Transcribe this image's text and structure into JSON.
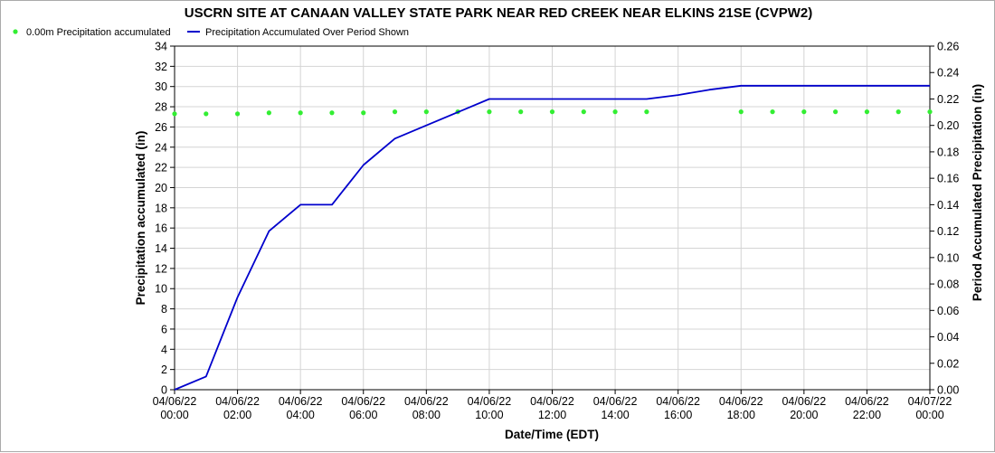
{
  "chart_data": {
    "type": "line",
    "title": "USCRN SITE AT CANAAN VALLEY STATE PARK NEAR RED CREEK NEAR ELKINS 21SE (CVPW2)",
    "xlabel": "Date/Time (EDT)",
    "ylabel_left": "Precipitation accumulated (in)",
    "ylabel_right": "Period Accumulated Precipitation (in)",
    "x_range": [
      "2022-04-06 00:00",
      "2022-04-07 00:00"
    ],
    "ylim_left": [
      0,
      34
    ],
    "ylim_right": [
      0,
      0.26
    ],
    "grid": true,
    "legend_placement": "top-left",
    "x_ticks": [
      {
        "hour": 0,
        "date": "04/06/22",
        "time": "00:00"
      },
      {
        "hour": 2,
        "date": "04/06/22",
        "time": "02:00"
      },
      {
        "hour": 4,
        "date": "04/06/22",
        "time": "04:00"
      },
      {
        "hour": 6,
        "date": "04/06/22",
        "time": "06:00"
      },
      {
        "hour": 8,
        "date": "04/06/22",
        "time": "08:00"
      },
      {
        "hour": 10,
        "date": "04/06/22",
        "time": "10:00"
      },
      {
        "hour": 12,
        "date": "04/06/22",
        "time": "12:00"
      },
      {
        "hour": 14,
        "date": "04/06/22",
        "time": "14:00"
      },
      {
        "hour": 16,
        "date": "04/06/22",
        "time": "16:00"
      },
      {
        "hour": 18,
        "date": "04/06/22",
        "time": "18:00"
      },
      {
        "hour": 20,
        "date": "04/06/22",
        "time": "20:00"
      },
      {
        "hour": 22,
        "date": "04/06/22",
        "time": "22:00"
      },
      {
        "hour": 24,
        "date": "04/07/22",
        "time": "00:00"
      }
    ],
    "y_ticks_left": [
      "0",
      "2",
      "4",
      "6",
      "8",
      "10",
      "12",
      "14",
      "16",
      "18",
      "20",
      "22",
      "24",
      "26",
      "28",
      "30",
      "32",
      "34"
    ],
    "y_ticks_right": [
      "0.00",
      "0.02",
      "0.04",
      "0.06",
      "0.08",
      "0.10",
      "0.12",
      "0.14",
      "0.16",
      "0.18",
      "0.20",
      "0.22",
      "0.24",
      "0.26"
    ],
    "series": [
      {
        "name": "0.00m Precipitation accumulated",
        "axis": "left",
        "style": "points",
        "color": "#33ee33",
        "x_hours": [
          0,
          1,
          2,
          3,
          4,
          5,
          6,
          7,
          8,
          9,
          10,
          11,
          12,
          13,
          14,
          15,
          18,
          19,
          20,
          21,
          22,
          23,
          24
        ],
        "values": [
          27.3,
          27.3,
          27.3,
          27.4,
          27.4,
          27.4,
          27.4,
          27.5,
          27.5,
          27.5,
          27.5,
          27.5,
          27.5,
          27.5,
          27.5,
          27.5,
          27.5,
          27.5,
          27.5,
          27.5,
          27.5,
          27.5,
          27.5
        ]
      },
      {
        "name": "Precipitation Accumulated Over Period Shown",
        "axis": "right",
        "style": "line",
        "color": "#0000cc",
        "x_hours": [
          0,
          1,
          2,
          3,
          4,
          5,
          6,
          7,
          8,
          9,
          10,
          11,
          12,
          13,
          14,
          15,
          16,
          17,
          18,
          19,
          20,
          21,
          22,
          23,
          24
        ],
        "values": [
          0.0,
          0.01,
          0.07,
          0.12,
          0.14,
          0.14,
          0.17,
          0.19,
          0.2,
          0.21,
          0.22,
          0.22,
          0.22,
          0.22,
          0.22,
          0.22,
          0.223,
          0.227,
          0.23,
          0.23,
          0.23,
          0.23,
          0.23,
          0.23,
          0.23
        ]
      }
    ]
  }
}
